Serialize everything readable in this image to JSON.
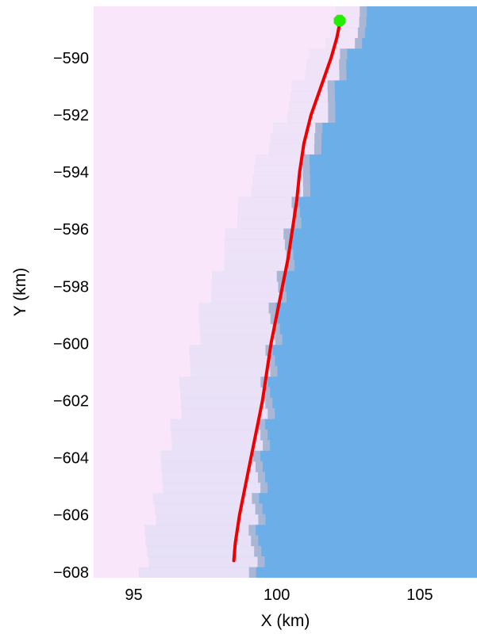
{
  "chart_data": {
    "type": "line",
    "title": "",
    "xlabel": "X (km)",
    "ylabel": "Y (km)",
    "xlim": [
      93.6,
      107.0
    ],
    "ylim": [
      -608.2,
      -588.2
    ],
    "xticks": [
      95,
      100,
      105
    ],
    "yticks": [
      -590,
      -592,
      -594,
      -596,
      -598,
      -600,
      -602,
      -604,
      -606,
      -608
    ],
    "xtick_labels": [
      "95",
      "100",
      "105"
    ],
    "ytick_labels": [
      "−590",
      "−592",
      "−594",
      "−596",
      "−598",
      "−600",
      "−602",
      "−604",
      "−606",
      "−608"
    ],
    "grid": false,
    "background": {
      "type": "raster",
      "land_color": "#fae6fa",
      "water_color": "#6baee8",
      "transition_color": "#d9dcf5",
      "boundary_x": [
        {
          "y": -588.2,
          "x": 103.4
        },
        {
          "y": -589.0,
          "x": 103.1
        },
        {
          "y": -590.0,
          "x": 102.5
        },
        {
          "y": -591.0,
          "x": 102.2
        },
        {
          "y": -592.0,
          "x": 101.9
        },
        {
          "y": -593.0,
          "x": 101.5
        },
        {
          "y": -594.0,
          "x": 101.2
        },
        {
          "y": -595.0,
          "x": 100.9
        },
        {
          "y": -596.0,
          "x": 100.7
        },
        {
          "y": -597.0,
          "x": 100.5
        },
        {
          "y": -598.0,
          "x": 100.3
        },
        {
          "y": -599.0,
          "x": 100.1
        },
        {
          "y": -600.0,
          "x": 100.0
        },
        {
          "y": -601.0,
          "x": 99.9
        },
        {
          "y": -602.0,
          "x": 99.8
        },
        {
          "y": -603.0,
          "x": 99.7
        },
        {
          "y": -604.0,
          "x": 99.6
        },
        {
          "y": -605.0,
          "x": 99.5
        },
        {
          "y": -606.0,
          "x": 99.5
        },
        {
          "y": -607.0,
          "x": 99.4
        },
        {
          "y": -608.2,
          "x": 99.4
        }
      ]
    },
    "series": [
      {
        "color": "#ee0000",
        "x": [
          98.5,
          98.55,
          98.7,
          98.9,
          99.1,
          99.3,
          99.5,
          99.65,
          99.8,
          100.0,
          100.2,
          100.4,
          100.55,
          100.7,
          100.8,
          100.95,
          101.2,
          101.55,
          101.9,
          102.1,
          102.2
        ],
        "y": [
          -607.6,
          -607.0,
          -606.0,
          -605.0,
          -604.0,
          -603.0,
          -602.0,
          -601.0,
          -600.0,
          -599.0,
          -598.0,
          -597.0,
          -596.0,
          -595.0,
          -594.0,
          -593.0,
          -592.0,
          -591.0,
          -590.0,
          -589.3,
          -588.8
        ]
      }
    ],
    "markers": [
      {
        "x": 102.2,
        "y": -588.7,
        "color": "#22ee00",
        "shape": "octagon"
      }
    ]
  }
}
